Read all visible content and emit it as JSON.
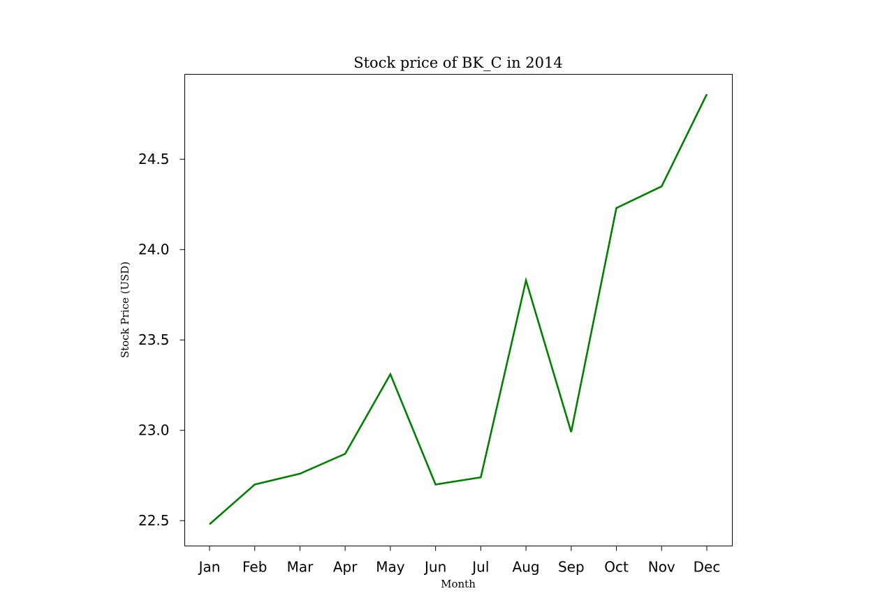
{
  "chart_data": {
    "type": "line",
    "title": "Stock price of BK_C in 2014",
    "xlabel": "Month",
    "ylabel": "Stock Price (USD)",
    "categories": [
      "Jan",
      "Feb",
      "Mar",
      "Apr",
      "May",
      "Jun",
      "Jul",
      "Aug",
      "Sep",
      "Oct",
      "Nov",
      "Dec"
    ],
    "series": [
      {
        "values": [
          22.48,
          22.7,
          22.76,
          22.87,
          23.31,
          22.7,
          22.74,
          23.83,
          22.99,
          24.23,
          24.35,
          24.86
        ],
        "color": "#008000"
      }
    ],
    "ylim": [
      22.36,
      24.97
    ],
    "yticks": [
      22.5,
      23.0,
      23.5,
      24.0,
      24.5
    ],
    "ytick_labels": [
      "22.5",
      "23.0",
      "23.5",
      "24.0",
      "24.5"
    ],
    "grid": false,
    "legend": "none"
  }
}
